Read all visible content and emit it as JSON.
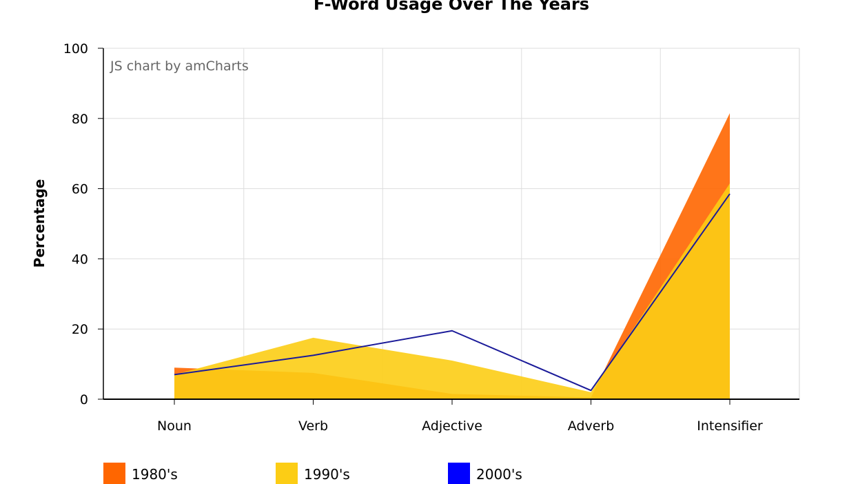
{
  "chart_data": {
    "type": "area",
    "title": "F-Word Usage Over The Years",
    "xlabel": "",
    "ylabel": "Percentage",
    "ylim": [
      0,
      100
    ],
    "yticks": [
      0,
      20,
      40,
      60,
      80,
      100
    ],
    "grid": true,
    "credit": "JS chart by amCharts",
    "legend_position": "bottom",
    "categories": [
      "Noun",
      "Verb",
      "Adjective",
      "Adverb",
      "Intensifier"
    ],
    "series": [
      {
        "name": "1980's",
        "type": "area",
        "color": "#ff6600",
        "values": [
          9,
          7.5,
          1.5,
          0.5,
          81.5
        ]
      },
      {
        "name": "1990's",
        "type": "area",
        "color": "#fccd15",
        "values": [
          7,
          17.5,
          11,
          2,
          61.5
        ]
      },
      {
        "name": "2000's",
        "type": "line",
        "color": "#0000ff",
        "legend_color": "#0000ff",
        "line_color": "#1a1a99",
        "values": [
          7,
          12.5,
          19.5,
          2.5,
          58.5
        ]
      }
    ]
  }
}
